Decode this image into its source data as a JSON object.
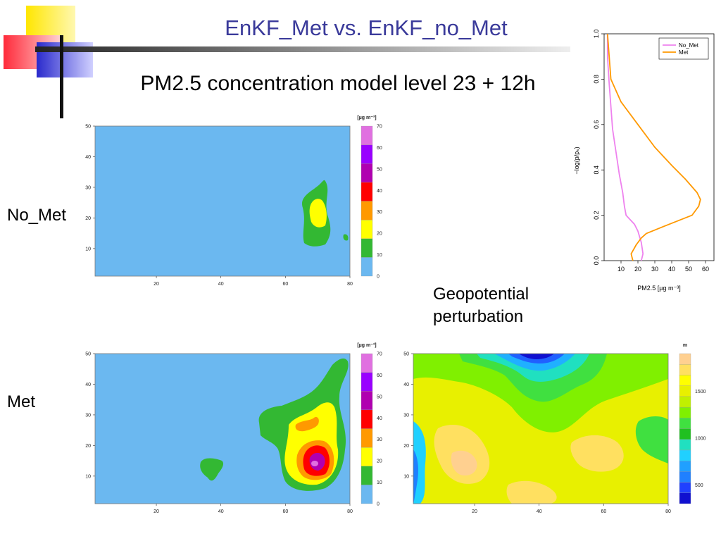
{
  "slide": {
    "title": "EnKF_Met vs. EnKF_no_Met",
    "subtitle": "PM2.5 concentration model level 23 + 12h",
    "row_label_top": "No_Met",
    "row_label_bottom": "Met",
    "geo_label_line1": "Geopotential",
    "geo_label_line2": "perturbation"
  },
  "colors": {
    "title": "#3a3a9a",
    "bg_field": "#6bb8f0",
    "logo_yellow": "#ffe600",
    "logo_red": "#ff3344",
    "logo_blue": "#3333cc"
  },
  "chart_data": [
    {
      "id": "pm25-no-met-map",
      "type": "heatmap",
      "title": "",
      "x_ticks": [
        20,
        40,
        60,
        80
      ],
      "y_ticks": [
        10,
        20,
        30,
        40,
        50
      ],
      "xlim": [
        1,
        80
      ],
      "ylim": [
        1,
        50
      ],
      "colorbar": {
        "unit": "[µg m⁻³]",
        "ticks": [
          0,
          10,
          20,
          30,
          40,
          50,
          60,
          70
        ],
        "colors": [
          "#6bb8f0",
          "#33b833",
          "#ffff00",
          "#ff9900",
          "#ff0000",
          "#b000b0",
          "#9900ff",
          "#e070e0"
        ]
      },
      "features": [
        {
          "level": 10,
          "description": "plume near x 67-75, y 10-33"
        },
        {
          "level": 20,
          "description": "core near x 70, y 22"
        }
      ]
    },
    {
      "id": "pm25-met-map",
      "type": "heatmap",
      "title": "",
      "x_ticks": [
        20,
        40,
        60,
        80
      ],
      "y_ticks": [
        10,
        20,
        30,
        40,
        50
      ],
      "xlim": [
        1,
        80
      ],
      "ylim": [
        1,
        50
      ],
      "colorbar": {
        "unit": "[µg m⁻³]",
        "ticks": [
          0,
          10,
          20,
          30,
          40,
          50,
          60,
          70
        ],
        "colors": [
          "#6bb8f0",
          "#33b833",
          "#ffff00",
          "#ff9900",
          "#ff0000",
          "#b000b0",
          "#9900ff",
          "#e070e0"
        ]
      },
      "features": [
        {
          "level": 10,
          "description": "large plume x 52-80, y 5-50"
        },
        {
          "level": 60,
          "description": "peak near x 70, y 13"
        }
      ]
    },
    {
      "id": "geopotential-map",
      "type": "heatmap",
      "title": "",
      "x_ticks": [
        20,
        40,
        60,
        80
      ],
      "y_ticks": [
        10,
        20,
        30,
        40,
        50
      ],
      "xlim": [
        1,
        80
      ],
      "ylim": [
        1,
        50
      ],
      "colorbar": {
        "unit": "m",
        "ticks": [
          500,
          1000,
          1500
        ],
        "range": [
          300,
          1900
        ],
        "colors": [
          "#1010d0",
          "#2040ff",
          "#2080ff",
          "#20a0ff",
          "#20d0ff",
          "#20e0c0",
          "#20c020",
          "#40e040",
          "#80f000",
          "#c0f000",
          "#e8f000",
          "#ffff00",
          "#ffe060",
          "#ffd090"
        ]
      }
    },
    {
      "id": "pm25-vertical-profile",
      "type": "line",
      "title": "",
      "xlabel": "PM2.5 [µg m⁻³]",
      "ylabel": "−log(p/pₛ)",
      "xlim": [
        0,
        65
      ],
      "ylim": [
        0,
        1
      ],
      "x_ticks": [
        10,
        20,
        30,
        40,
        50,
        60
      ],
      "y_ticks": [
        0.0,
        0.2,
        0.4,
        0.6,
        0.8,
        1.0
      ],
      "legend_position": "top-right",
      "series": [
        {
          "name": "No_Met",
          "color": "#ee82ee",
          "points": [
            [
              22,
              0.0
            ],
            [
              23,
              0.03
            ],
            [
              22,
              0.08
            ],
            [
              20,
              0.13
            ],
            [
              18,
              0.16
            ],
            [
              13,
              0.2
            ],
            [
              12,
              0.24
            ],
            [
              11,
              0.3
            ],
            [
              9,
              0.38
            ],
            [
              7,
              0.48
            ],
            [
              5,
              0.58
            ],
            [
              4,
              0.68
            ],
            [
              3,
              0.78
            ],
            [
              2,
              0.9
            ],
            [
              2,
              1.0
            ]
          ]
        },
        {
          "name": "Met",
          "color": "#ff9900",
          "points": [
            [
              17,
              0.0
            ],
            [
              16,
              0.03
            ],
            [
              19,
              0.07
            ],
            [
              22,
              0.1
            ],
            [
              25,
              0.12
            ],
            [
              35,
              0.15
            ],
            [
              52,
              0.2
            ],
            [
              56,
              0.24
            ],
            [
              57,
              0.27
            ],
            [
              55,
              0.3
            ],
            [
              48,
              0.36
            ],
            [
              40,
              0.42
            ],
            [
              30,
              0.5
            ],
            [
              20,
              0.6
            ],
            [
              10,
              0.7
            ],
            [
              4,
              0.8
            ],
            [
              3,
              0.9
            ],
            [
              2,
              1.0
            ]
          ]
        }
      ]
    }
  ]
}
